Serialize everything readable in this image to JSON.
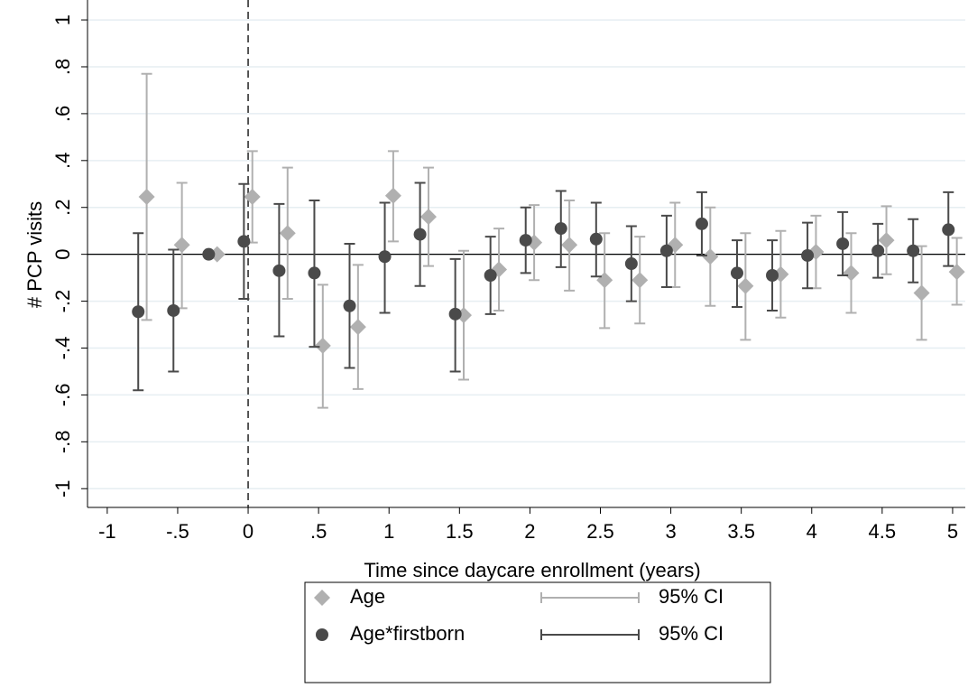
{
  "chart_data": {
    "type": "coefplot",
    "xlabel": "Time since daycare enrollment (years)",
    "ylabel": "# PCP visits",
    "xlim": [
      -1.14,
      5.09
    ],
    "ylim": [
      -1.08,
      1.085
    ],
    "xticks": [
      -1,
      {
        "value": -0.5,
        "label": "-.5"
      },
      0,
      {
        "value": 0.5,
        "label": ".5"
      },
      1,
      1.5,
      2,
      2.5,
      3,
      3.5,
      4,
      4.5,
      5
    ],
    "yticks": [
      -1,
      {
        "value": -0.8,
        "label": "-.8"
      },
      {
        "value": -0.6,
        "label": "-.6"
      },
      {
        "value": -0.4,
        "label": "-.4"
      },
      {
        "value": -0.2,
        "label": "-.2"
      },
      0,
      {
        "value": 0.2,
        "label": ".2"
      },
      {
        "value": 0.4,
        "label": ".4"
      },
      {
        "value": 0.6,
        "label": ".6"
      },
      {
        "value": 0.8,
        "label": ".8"
      },
      1
    ],
    "grid": true,
    "vline": 0,
    "hline": 0,
    "series": [
      {
        "name": "Age",
        "ci_label": "95% CI",
        "color": "#b0b0b0",
        "marker": "diamond",
        "x": [
          -0.72,
          -0.47,
          -0.22,
          0.03,
          0.28,
          0.53,
          0.78,
          1.03,
          1.28,
          1.53,
          1.78,
          2.03,
          2.28,
          2.53,
          2.78,
          3.03,
          3.28,
          3.53,
          3.78,
          4.03,
          4.28,
          4.53,
          4.78,
          5.03
        ],
        "values": [
          0.245,
          0.04,
          0,
          0.245,
          0.09,
          -0.39,
          -0.31,
          0.25,
          0.16,
          -0.26,
          -0.065,
          0.05,
          0.04,
          -0.11,
          -0.11,
          0.04,
          -0.01,
          -0.135,
          -0.085,
          0.01,
          -0.08,
          0.06,
          -0.165,
          -0.075
        ],
        "lower": [
          -0.28,
          -0.23,
          null,
          0.05,
          -0.19,
          -0.655,
          -0.575,
          0.055,
          -0.05,
          -0.535,
          -0.24,
          -0.11,
          -0.155,
          -0.315,
          -0.295,
          -0.14,
          -0.22,
          -0.365,
          -0.27,
          -0.145,
          -0.25,
          -0.085,
          -0.365,
          -0.215
        ],
        "upper": [
          0.77,
          0.305,
          null,
          0.44,
          0.37,
          -0.13,
          -0.045,
          0.44,
          0.37,
          0.015,
          0.11,
          0.21,
          0.23,
          0.09,
          0.075,
          0.22,
          0.2,
          0.09,
          0.1,
          0.165,
          0.09,
          0.205,
          0.035,
          0.07
        ]
      },
      {
        "name": "Age*firstborn",
        "ci_label": "95% CI",
        "color": "#4a4a4a",
        "marker": "circle",
        "x": [
          -0.78,
          -0.53,
          -0.28,
          -0.03,
          0.22,
          0.47,
          0.72,
          0.97,
          1.22,
          1.47,
          1.72,
          1.97,
          2.22,
          2.47,
          2.72,
          2.97,
          3.22,
          3.47,
          3.72,
          3.97,
          4.22,
          4.47,
          4.72,
          4.97
        ],
        "values": [
          -0.245,
          -0.24,
          0,
          0.055,
          -0.07,
          -0.08,
          -0.22,
          -0.01,
          0.085,
          -0.255,
          -0.09,
          0.06,
          0.11,
          0.065,
          -0.04,
          0.015,
          0.13,
          -0.08,
          -0.09,
          -0.005,
          0.045,
          0.015,
          0.015,
          0.105
        ],
        "lower": [
          -0.58,
          -0.5,
          null,
          -0.19,
          -0.35,
          -0.395,
          -0.485,
          -0.25,
          -0.135,
          -0.5,
          -0.255,
          -0.08,
          -0.055,
          -0.095,
          -0.2,
          -0.14,
          -0.005,
          -0.225,
          -0.24,
          -0.145,
          -0.09,
          -0.1,
          -0.12,
          -0.05
        ],
        "upper": [
          0.09,
          0.02,
          null,
          0.3,
          0.215,
          0.23,
          0.045,
          0.22,
          0.305,
          -0.02,
          0.075,
          0.2,
          0.27,
          0.22,
          0.12,
          0.165,
          0.265,
          0.06,
          0.06,
          0.135,
          0.18,
          0.13,
          0.15,
          0.265
        ]
      }
    ]
  }
}
